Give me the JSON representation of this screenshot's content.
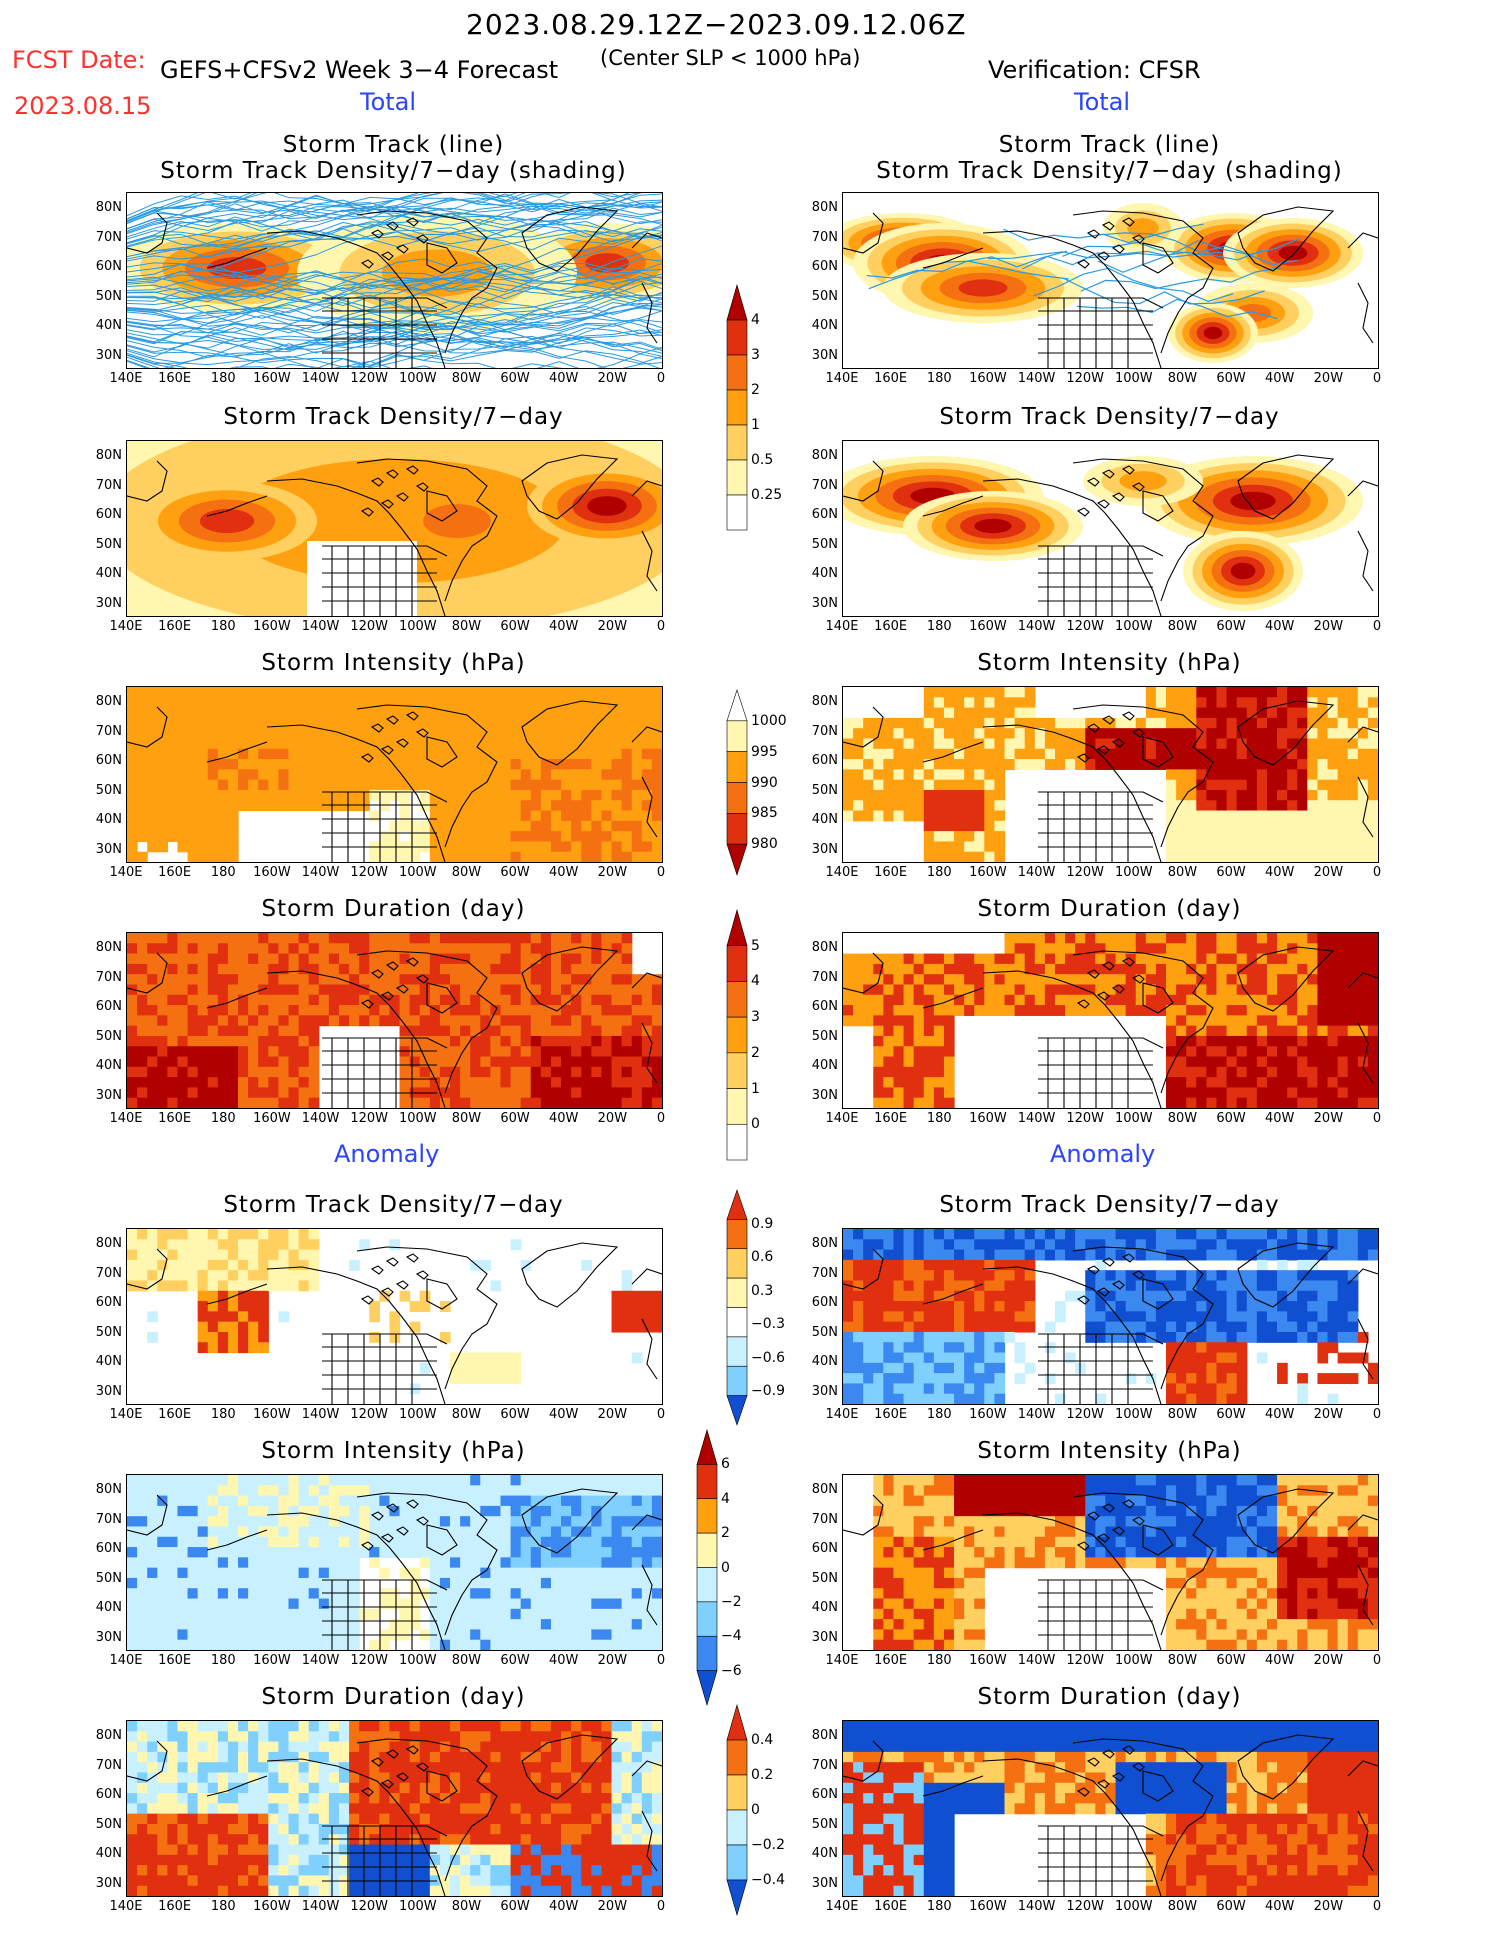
{
  "header": {
    "period": "2023.08.29.12Z−2023.09.12.06Z",
    "fcst_label": "FCST Date:",
    "fcst_date": "2023.08.15",
    "model": "GEFS+CFSv2 Week 3−4 Forecast",
    "criterion": "(Center SLP < 1000 hPa)",
    "verification": "Verification: CFSR"
  },
  "sections": {
    "total_left": "Total",
    "total_right": "Total",
    "anomaly_left": "Anomaly",
    "anomaly_right": "Anomaly"
  },
  "panel_titles": {
    "track_line": "Storm Track (line)",
    "track_shading": "Storm Track Density/7−day (shading)",
    "density": "Storm Track Density/7−day",
    "intensity": "Storm Intensity (hPa)",
    "duration": "Storm Duration (day)"
  },
  "axes": {
    "lat_ticks": [
      "80N",
      "70N",
      "60N",
      "50N",
      "40N",
      "30N"
    ],
    "lon_ticks": [
      "140E",
      "160E",
      "180",
      "160W",
      "140W",
      "120W",
      "100W",
      "80W",
      "60W",
      "40W",
      "20W",
      "0"
    ]
  },
  "colorbars": {
    "density_total": [
      "4",
      "3",
      "2",
      "1",
      "0.5",
      "0.25"
    ],
    "intensity_total": [
      "1000",
      "995",
      "990",
      "985",
      "980"
    ],
    "duration_total": [
      "5",
      "4",
      "3",
      "2",
      "1",
      "0"
    ],
    "density_anom": [
      "0.9",
      "0.6",
      "0.3",
      "−0.3",
      "−0.6",
      "−0.9"
    ],
    "intensity_anom": [
      "6",
      "4",
      "2",
      "0",
      "−2",
      "−4",
      "−6"
    ],
    "duration_anom": [
      "0.4",
      "0.2",
      "0",
      "−0.2",
      "−0.4"
    ]
  },
  "colors": {
    "title_red": "#ff3030",
    "section_blue": "#2a44ff",
    "warm": [
      "#fff6b0",
      "#ffd060",
      "#ffa010",
      "#f57010",
      "#e03010",
      "#b00000"
    ],
    "cool": [
      "#c8f0ff",
      "#80d0ff",
      "#3a88f0",
      "#1050d0"
    ]
  }
}
